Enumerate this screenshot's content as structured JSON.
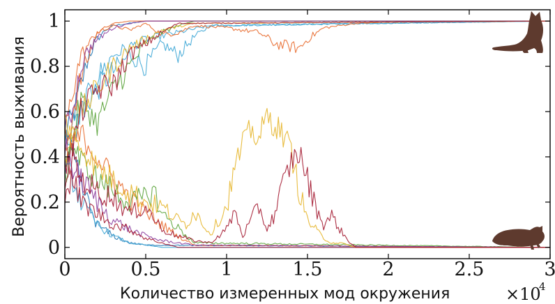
{
  "chart_data": {
    "type": "line",
    "title": "",
    "xlabel": "Количество измеренных мод окружения",
    "ylabel": "Вероятность выживания",
    "x_multiplier": "×10",
    "x_multiplier_exp": "4",
    "xlim": [
      0,
      3
    ],
    "ylim": [
      -0.05,
      1.05
    ],
    "x_ticks": [
      {
        "value": 0,
        "label": "0"
      },
      {
        "value": 0.5,
        "label": "0.5"
      },
      {
        "value": 1,
        "label": "1"
      },
      {
        "value": 1.5,
        "label": "1.5"
      },
      {
        "value": 2,
        "label": "2"
      },
      {
        "value": 2.5,
        "label": "2.5"
      },
      {
        "value": 3,
        "label": "3"
      }
    ],
    "y_ticks": [
      {
        "value": 0,
        "label": "0"
      },
      {
        "value": 0.2,
        "label": "0.2"
      },
      {
        "value": 0.4,
        "label": "0.4"
      },
      {
        "value": 0.6,
        "label": "0.6"
      },
      {
        "value": 0.8,
        "label": "0.8"
      },
      {
        "value": 1,
        "label": "1"
      }
    ],
    "grid": false,
    "legend": "none",
    "colors": {
      "blue": "#1f77b4",
      "orange": "#e8692b",
      "yellow": "#e5b52a",
      "purple": "#8a3b9c",
      "green": "#5aa33a",
      "cyan": "#3fa7d6",
      "darkred": "#a3172f",
      "cat": "#5e3a2e",
      "axis": "#000000"
    },
    "icons": {
      "top_right": "cat-alive-icon",
      "bottom_right": "cat-dead-icon"
    },
    "series": [
      {
        "color": "#1f77b4",
        "final": 1,
        "x": [
          0,
          0.05,
          0.1,
          0.15,
          0.2,
          0.25,
          0.3,
          0.4,
          0.5,
          0.7,
          3
        ],
        "y": [
          0.5,
          0.58,
          0.72,
          0.85,
          0.92,
          0.96,
          0.98,
          0.99,
          1,
          1,
          1
        ]
      },
      {
        "color": "#3fa7d6",
        "final": 1,
        "x": [
          0,
          0.05,
          0.1,
          0.2,
          0.3,
          0.4,
          0.5,
          0.6,
          0.7,
          0.8,
          0.9,
          3
        ],
        "y": [
          0.45,
          0.55,
          0.6,
          0.7,
          0.78,
          0.85,
          0.8,
          0.9,
          0.85,
          0.93,
          0.98,
          1
        ]
      },
      {
        "color": "#3fa7d6",
        "final": 1,
        "x": [
          0,
          0.05,
          0.1,
          0.2,
          0.3,
          0.5,
          0.7,
          0.9,
          3
        ],
        "y": [
          0.35,
          0.45,
          0.6,
          0.75,
          0.85,
          0.92,
          0.95,
          0.98,
          1
        ]
      },
      {
        "color": "#e8692b",
        "final": 1,
        "x": [
          0,
          0.05,
          0.1,
          0.15,
          0.2,
          0.3,
          0.4,
          0.5,
          0.6,
          0.7,
          0.8,
          1,
          1.2,
          1.3,
          1.45,
          1.5,
          1.6,
          1.8,
          2.2,
          3
        ],
        "y": [
          0.4,
          0.6,
          0.75,
          0.85,
          0.95,
          0.98,
          0.96,
          0.99,
          0.94,
          0.95,
          0.98,
          0.97,
          0.95,
          0.9,
          0.88,
          0.92,
          0.97,
          0.99,
          1,
          1
        ]
      },
      {
        "color": "#e8692b",
        "final": 1,
        "x": [
          0,
          0.05,
          0.1,
          0.2,
          0.3,
          0.4,
          0.6,
          0.8,
          3
        ],
        "y": [
          0.5,
          0.7,
          0.85,
          0.95,
          0.99,
          1,
          1,
          1,
          1
        ]
      },
      {
        "color": "#5aa33a",
        "final": 1,
        "x": [
          0,
          0.05,
          0.1,
          0.2,
          0.3,
          0.4,
          0.5,
          0.6,
          0.7,
          0.8,
          3
        ],
        "y": [
          0.3,
          0.5,
          0.65,
          0.55,
          0.7,
          0.8,
          0.9,
          0.95,
          0.98,
          1,
          1
        ]
      },
      {
        "color": "#8a3b9c",
        "final": 1,
        "x": [
          0,
          0.05,
          0.1,
          0.15,
          0.2,
          0.3,
          0.4,
          0.5,
          0.6,
          3
        ],
        "y": [
          0.5,
          0.62,
          0.8,
          0.88,
          0.92,
          0.97,
          0.99,
          1,
          1,
          1
        ]
      },
      {
        "color": "#e5b52a",
        "final": 1,
        "x": [
          0,
          0.05,
          0.1,
          0.2,
          0.3,
          0.4,
          0.5,
          0.6,
          0.8,
          3
        ],
        "y": [
          0.55,
          0.5,
          0.6,
          0.7,
          0.8,
          0.88,
          0.92,
          0.96,
          0.99,
          1
        ]
      },
      {
        "color": "#a3172f",
        "final": 1,
        "x": [
          0,
          0.05,
          0.1,
          0.2,
          0.3,
          0.4,
          0.5,
          0.6,
          0.7,
          3
        ],
        "y": [
          0.3,
          0.45,
          0.6,
          0.7,
          0.72,
          0.85,
          0.9,
          0.95,
          0.99,
          1
        ]
      },
      {
        "color": "#1f77b4",
        "final": 0,
        "x": [
          0,
          0.05,
          0.1,
          0.15,
          0.2,
          0.3,
          0.4,
          0.5,
          3
        ],
        "y": [
          0.5,
          0.4,
          0.28,
          0.18,
          0.1,
          0.05,
          0.02,
          0.01,
          0
        ]
      },
      {
        "color": "#3fa7d6",
        "final": 0,
        "x": [
          0,
          0.05,
          0.1,
          0.2,
          0.3,
          0.4,
          0.6,
          3
        ],
        "y": [
          0.35,
          0.3,
          0.2,
          0.1,
          0.05,
          0.02,
          0,
          0
        ]
      },
      {
        "color": "#e8692b",
        "final": 0,
        "x": [
          0,
          0.05,
          0.1,
          0.2,
          0.3,
          0.4,
          0.5,
          0.6,
          0.7,
          0.8,
          3
        ],
        "y": [
          0.5,
          0.45,
          0.5,
          0.4,
          0.3,
          0.22,
          0.15,
          0.1,
          0.05,
          0.01,
          0
        ]
      },
      {
        "color": "#5aa33a",
        "final": 0,
        "x": [
          0,
          0.05,
          0.1,
          0.2,
          0.3,
          0.4,
          0.5,
          0.55,
          0.6,
          0.8,
          3
        ],
        "y": [
          0.4,
          0.45,
          0.38,
          0.3,
          0.25,
          0.2,
          0.22,
          0.25,
          0.15,
          0.02,
          0
        ]
      },
      {
        "color": "#8a3b9c",
        "final": 0,
        "x": [
          0,
          0.05,
          0.1,
          0.2,
          0.3,
          0.4,
          0.5,
          0.6,
          0.8,
          3
        ],
        "y": [
          0.45,
          0.35,
          0.3,
          0.2,
          0.12,
          0.08,
          0.05,
          0.03,
          0.01,
          0
        ]
      },
      {
        "color": "#e5b52a",
        "final": 0,
        "x": [
          0,
          0.05,
          0.1,
          0.2,
          0.3,
          0.4,
          0.5,
          0.6,
          0.7,
          0.75,
          0.8,
          0.9,
          1.0,
          1.05,
          1.1,
          1.15,
          1.2,
          1.25,
          1.3,
          1.35,
          1.4,
          1.45,
          1.5,
          1.55,
          1.6,
          1.65,
          1.7,
          1.8,
          3
        ],
        "y": [
          0.4,
          0.5,
          0.45,
          0.35,
          0.3,
          0.25,
          0.2,
          0.18,
          0.12,
          0.1,
          0.16,
          0.06,
          0.18,
          0.35,
          0.45,
          0.52,
          0.48,
          0.58,
          0.54,
          0.5,
          0.42,
          0.25,
          0.12,
          0.08,
          0.04,
          0.02,
          0.02,
          0,
          0
        ]
      },
      {
        "color": "#a3172f",
        "final": 0,
        "x": [
          0,
          0.05,
          0.1,
          0.2,
          0.3,
          0.4,
          0.5,
          0.6,
          0.7,
          0.8,
          0.9,
          1.0,
          1.05,
          1.1,
          1.15,
          1.2,
          1.25,
          1.3,
          1.35,
          1.4,
          1.45,
          1.5,
          1.55,
          1.6,
          1.65,
          1.7,
          1.75,
          1.8,
          3
        ],
        "y": [
          0.35,
          0.4,
          0.3,
          0.25,
          0.22,
          0.15,
          0.18,
          0.08,
          0.05,
          0.03,
          0.02,
          0.08,
          0.16,
          0.05,
          0.12,
          0.18,
          0.08,
          0.15,
          0.28,
          0.38,
          0.42,
          0.3,
          0.18,
          0.1,
          0.14,
          0.08,
          0.03,
          0,
          0
        ]
      },
      {
        "color": "#a3172f",
        "final": 0,
        "x": [
          0,
          0.05,
          0.1,
          0.2,
          0.3,
          0.4,
          0.5,
          0.6,
          0.7,
          3
        ],
        "y": [
          0.25,
          0.3,
          0.2,
          0.15,
          0.1,
          0.08,
          0.04,
          0.02,
          0,
          0
        ]
      }
    ]
  }
}
